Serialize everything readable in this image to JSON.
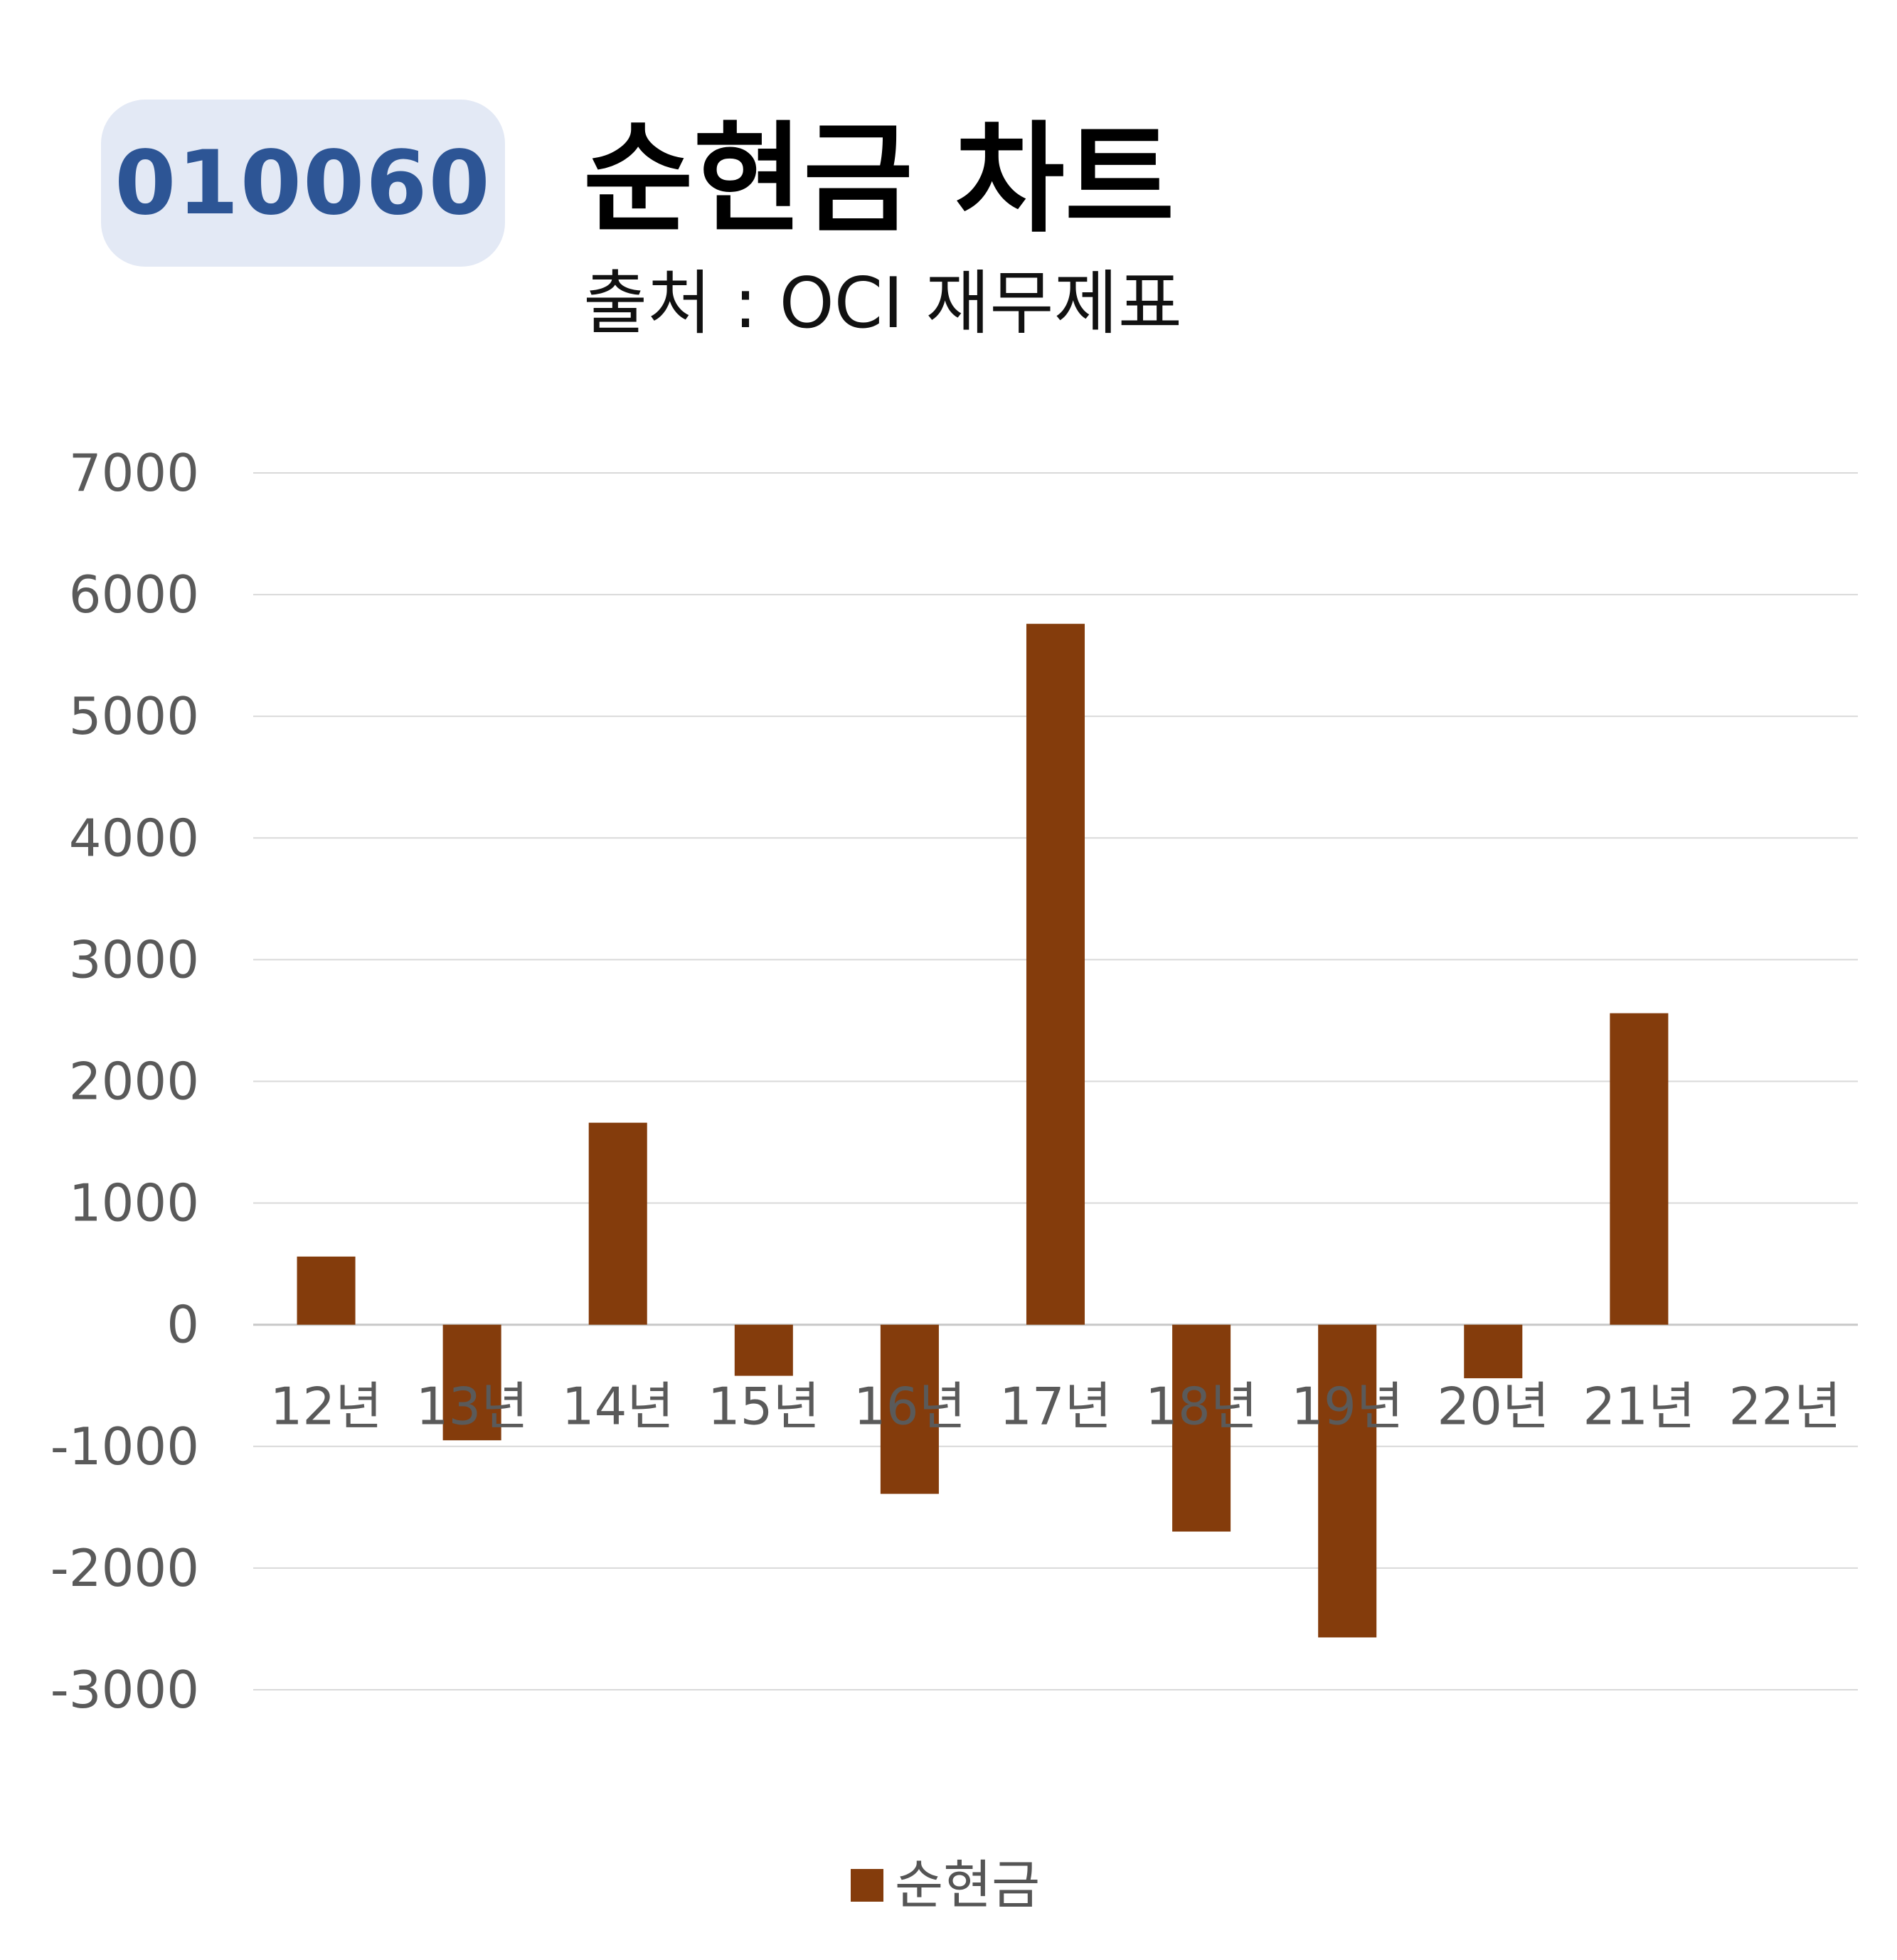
{
  "header": {
    "code": "010060",
    "title": "순현금 차트",
    "subtitle": "출처 : OCI 재무제표"
  },
  "chart_data": {
    "type": "bar",
    "categories": [
      "12년",
      "13년",
      "14년",
      "15년",
      "16년",
      "17년",
      "18년",
      "19년",
      "20년",
      "21년",
      "22년"
    ],
    "series": [
      {
        "name": "순현금",
        "values": [
          560,
          -950,
          1660,
          -420,
          -1390,
          5760,
          -1700,
          -2570,
          -440,
          2560,
          null
        ],
        "color": "#843c0c"
      }
    ],
    "ylim": [
      -3000,
      7000
    ],
    "yticks": [
      7000,
      6000,
      5000,
      4000,
      3000,
      2000,
      1000,
      0,
      -1000,
      -2000,
      -3000
    ],
    "grid": true,
    "legend": "bottom-center"
  },
  "colors": {
    "bar": "#843c0c",
    "grid": "#d9d9d9",
    "badge_bg": "#e3e9f5",
    "badge_text": "#2d5595"
  }
}
